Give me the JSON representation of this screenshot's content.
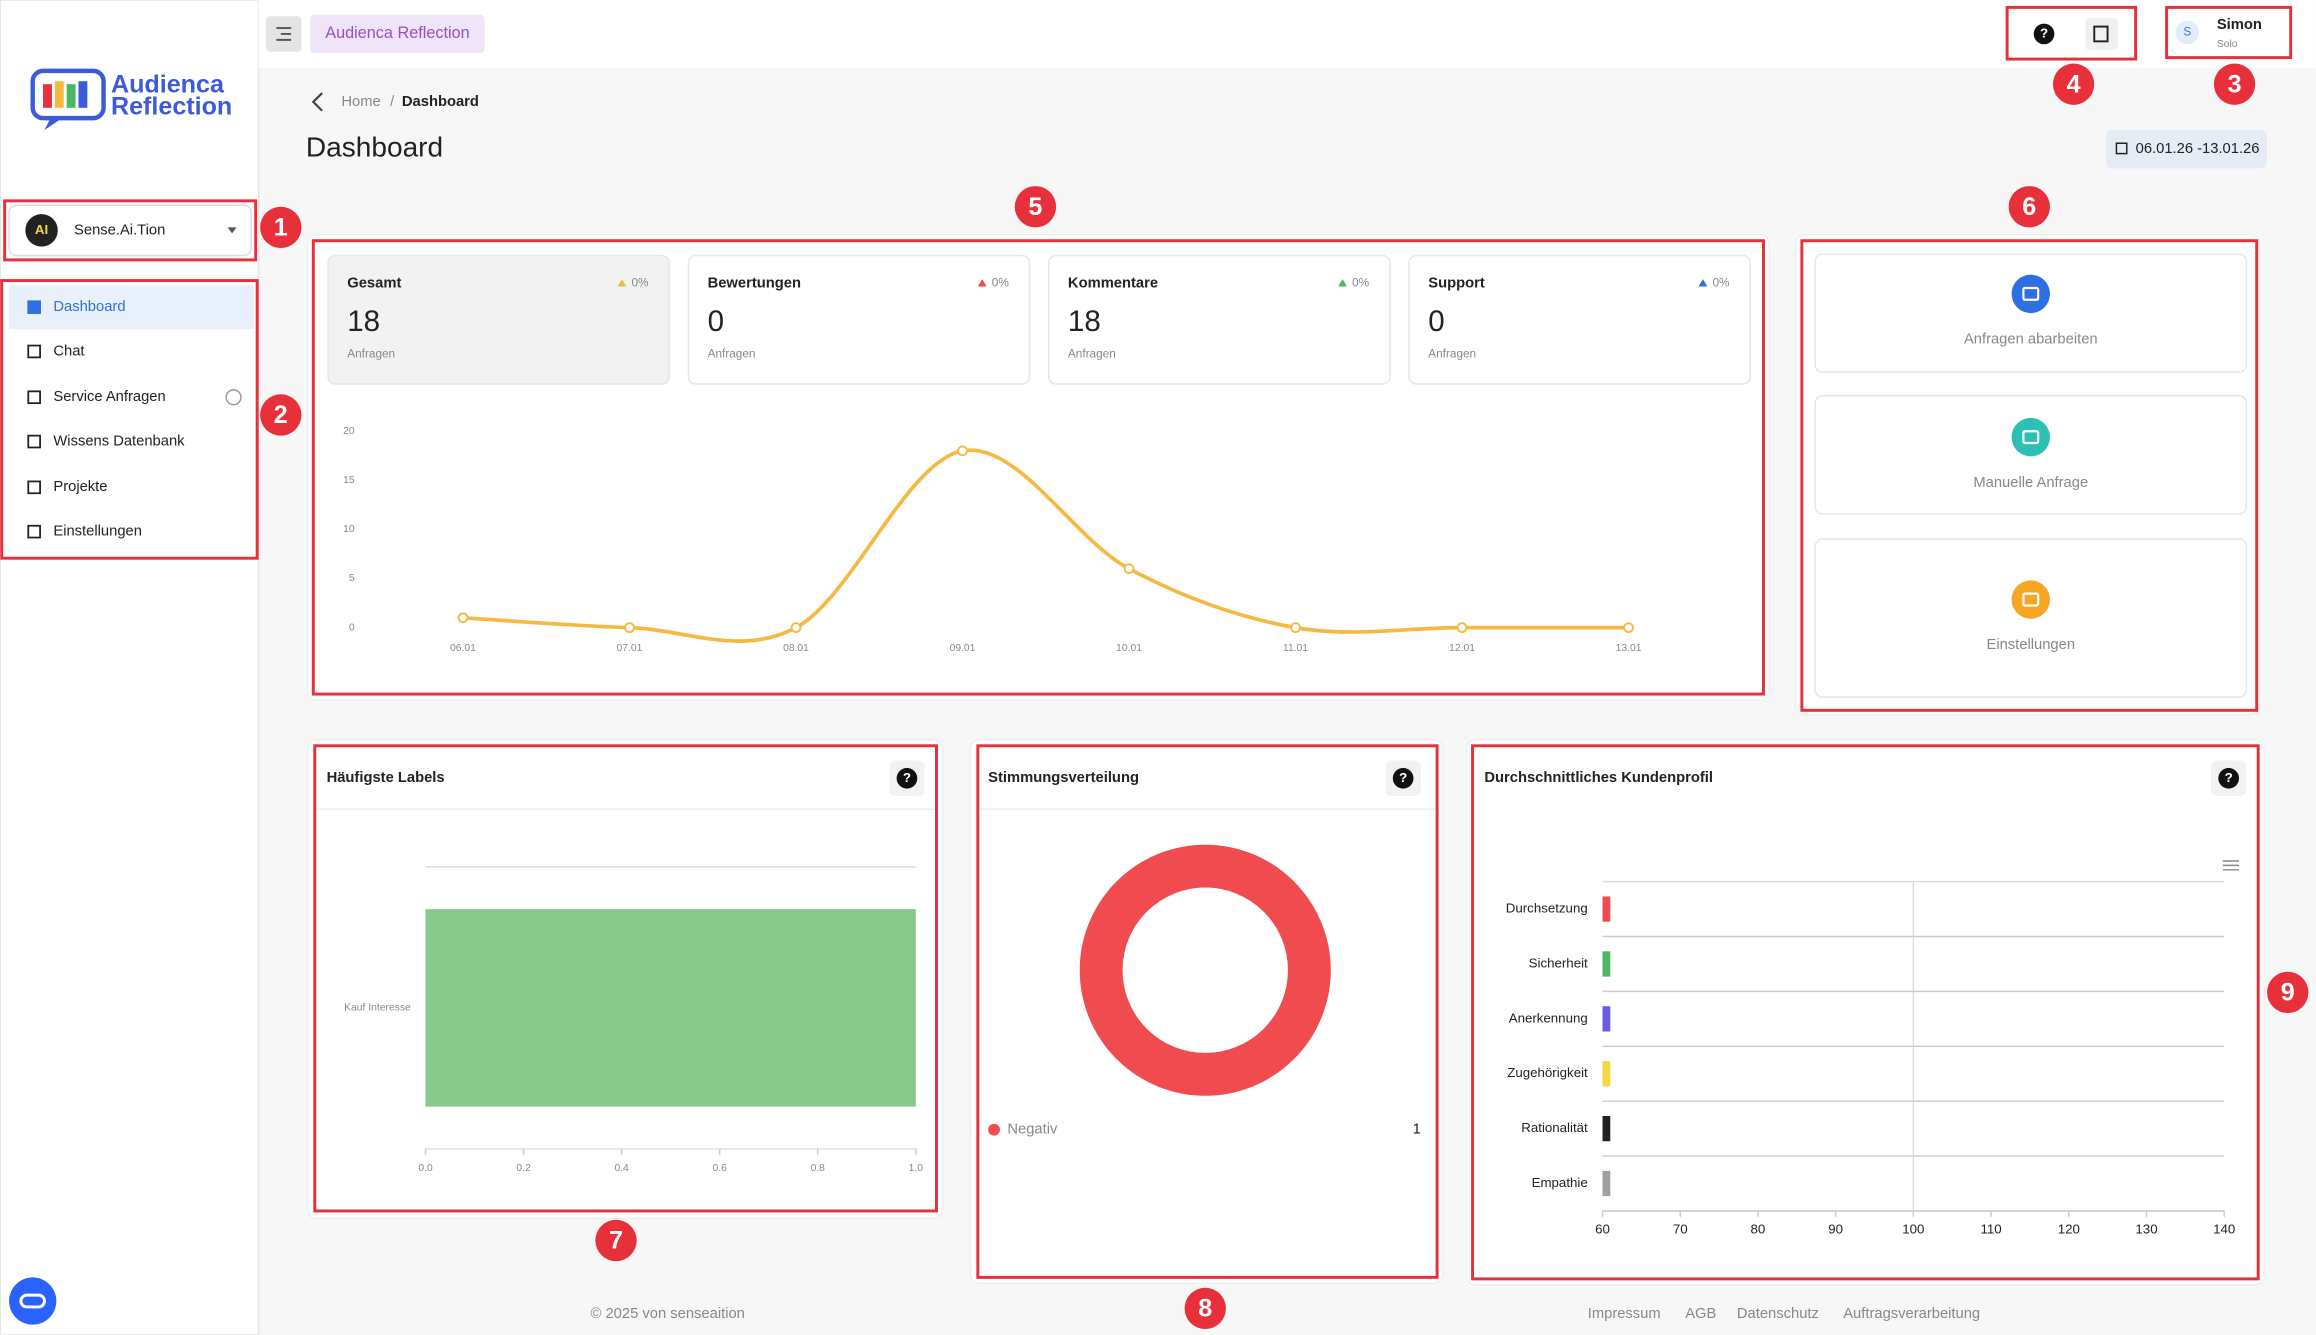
{
  "header": {
    "app_badge": "Audienca Reflection",
    "user_initial": "S",
    "user_name": "Simon",
    "user_plan": "Solo"
  },
  "sidebar": {
    "logo_lines": [
      "Audienca",
      "Reflection"
    ],
    "workspace_icon": "AI",
    "workspace": "Sense.Ai.Tion",
    "nav": [
      "Dashboard",
      "Chat",
      "Service Anfragen",
      "Wissens Datenbank",
      "Projekte",
      "Einstellungen"
    ]
  },
  "breadcrumb": [
    "Home",
    "Dashboard"
  ],
  "page_title": "Dashboard",
  "date_range": "06.01.26 -13.01.26",
  "stats": [
    {
      "label": "Gesamt",
      "change": "0%",
      "value": 18,
      "unit": "Anfragen"
    },
    {
      "label": "Bewertungen",
      "change": "0%",
      "value": 0,
      "unit": "Anfragen"
    },
    {
      "label": "Kommentare",
      "change": "0%",
      "value": 18,
      "unit": "Anfragen"
    },
    {
      "label": "Support",
      "change": "0%",
      "value": 0,
      "unit": "Anfragen"
    }
  ],
  "actions": [
    "Anfragen abarbeiten",
    "Manuelle Anfrage",
    "Einstellungen"
  ],
  "chart_data": [
    {
      "type": "line",
      "categories": [
        "06.01",
        "07.01",
        "08.01",
        "09.01",
        "10.01",
        "11.01",
        "12.01",
        "13.01"
      ],
      "values": [
        1,
        0,
        0,
        18,
        6,
        0,
        0,
        0
      ],
      "color": "#f5b942",
      "ylim": [
        0,
        20
      ],
      "yticks": [
        0,
        5,
        10,
        15,
        20
      ],
      "smooth": true
    },
    {
      "type": "bar",
      "orientation": "horizontal",
      "title": "Häufigste Labels",
      "categories": [
        "Kauf Interesse"
      ],
      "values": [
        1
      ],
      "color": "#86c98a",
      "xlim": [
        0,
        1
      ],
      "xticks": [
        {
          "value": 0,
          "label": "0.0"
        },
        0.2,
        0.4,
        0.6,
        0.8,
        {
          "value": 1,
          "label": "1.0"
        }
      ]
    },
    {
      "type": "pie",
      "title": "Stimmungsverteilung",
      "categories": [
        "Negativ"
      ],
      "values": [
        1
      ],
      "colors": [
        "#f04b4f"
      ],
      "donut": true
    },
    {
      "type": "bar",
      "orientation": "horizontal",
      "title": "Durchschnittliches Kundenprofil",
      "categories": [
        "Durchsetzung",
        "Sicherheit",
        "Anerkennung",
        "Zugehörigkeit",
        "Rationalität",
        "Empathie"
      ],
      "values": [
        61,
        61,
        61,
        61,
        61,
        61
      ],
      "colors": [
        "#f04b4f",
        "#4cb860",
        "#6a5be0",
        "#f5d742",
        "#222222",
        "#a0a0a0"
      ],
      "xlim": [
        60,
        140
      ],
      "xticks": [
        60,
        70,
        80,
        90,
        100,
        110,
        120,
        130,
        140
      ],
      "grid": true
    }
  ],
  "annotations": [
    "1",
    "2",
    "3",
    "4",
    "5",
    "6",
    "7",
    "8",
    "9"
  ],
  "footer": {
    "copyright": "© 2025 von senseaition",
    "links": [
      "Impressum",
      "AGB",
      "Datenschutz",
      "Auftragsverarbeitung"
    ]
  }
}
